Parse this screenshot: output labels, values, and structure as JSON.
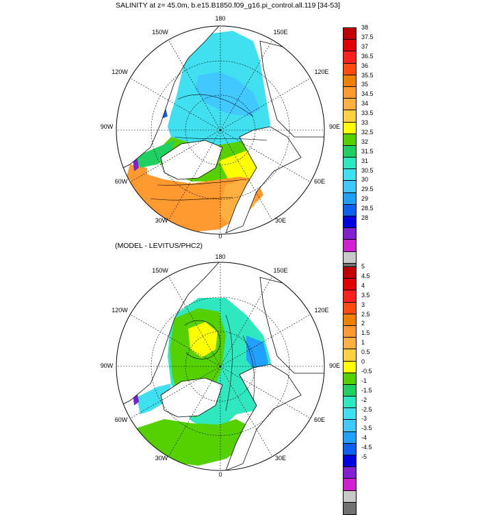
{
  "panel1": {
    "title": "SALINITY at z=  45.0m, b.e15.B1850.f09_g16.pi_control.all.119 [34-53]",
    "lon_labels": [
      "180",
      "150E",
      "120E",
      "90E",
      "60E",
      "30E",
      "0",
      "30W",
      "60W",
      "90W",
      "120W",
      "150W"
    ],
    "colorbar": {
      "labels": [
        "38",
        "37.5",
        "37",
        "36.5",
        "36",
        "35.5",
        "35",
        "34.5",
        "34",
        "33.5",
        "33",
        "32.5",
        "32",
        "31.5",
        "31",
        "30.5",
        "30",
        "29.5",
        "29",
        "28.5",
        "28"
      ],
      "colors": [
        "#c00000",
        "#e00000",
        "#ff2020",
        "#ff4a10",
        "#f08000",
        "#ff9a30",
        "#ffb040",
        "#ffd040",
        "#ffff00",
        "#55d000",
        "#20d060",
        "#30e8c0",
        "#40e0f0",
        "#40c8ff",
        "#20a0ff",
        "#1060f0",
        "#0000e0",
        "#8020d0",
        "#d020d0",
        "#c8c8c8",
        "#707070"
      ]
    }
  },
  "panel2": {
    "title": "(MODEL - LEVITUS/PHC2)",
    "lon_labels": [
      "180",
      "150E",
      "120E",
      "90E",
      "60E",
      "30E",
      "0",
      "30W",
      "60W",
      "90W",
      "120W",
      "150W"
    ],
    "colorbar": {
      "labels": [
        "5",
        "4.5",
        "4",
        "3.5",
        "3",
        "2.5",
        "2",
        "1.5",
        "1",
        "0.5",
        "0",
        "-0.5",
        "-1",
        "-1.5",
        "-2",
        "-2.5",
        "-3",
        "-3.5",
        "-4",
        "-4.5",
        "-5"
      ],
      "colors": [
        "#c00000",
        "#e00000",
        "#ff2020",
        "#ff4a10",
        "#f08000",
        "#ff9a30",
        "#ffb040",
        "#ffd040",
        "#ffff00",
        "#55d000",
        "#20d060",
        "#30e8c0",
        "#40e0f0",
        "#40c8ff",
        "#20a0ff",
        "#1060f0",
        "#0000e0",
        "#8020d0",
        "#d020d0",
        "#c8c8c8",
        "#707070"
      ]
    }
  }
}
